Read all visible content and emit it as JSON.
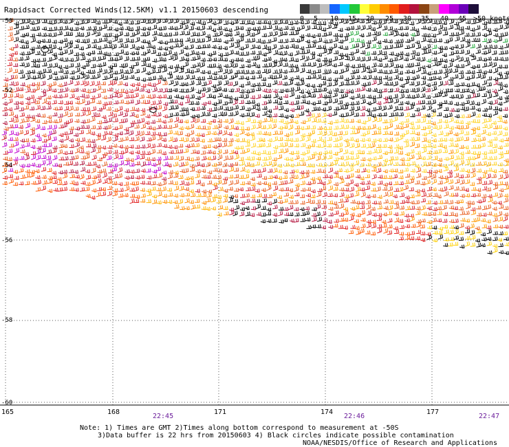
{
  "title": "Rapidsact Corrected Winds(12.5KM) v1.1 20150603 descending",
  "legend": {
    "labels": [
      "0",
      "5",
      "10",
      "15",
      "20",
      "25",
      "30",
      "35",
      "40",
      "45",
      ">50 knots"
    ],
    "colors": [
      "#3a3a3a",
      "#8a8a8a",
      "#bdbdbd",
      "#1565ff",
      "#00c8ff",
      "#22c83a",
      "#ffff3a",
      "#ffcc00",
      "#ff8c00",
      "#ff5a00",
      "#e11d1d",
      "#b3123c",
      "#8b4513",
      "#c8a07a",
      "#ff00ff",
      "#b000d8",
      "#6a00b8",
      "#1e0f3a"
    ]
  },
  "axes": {
    "x_labels": [
      "165",
      "168",
      "171",
      "174",
      "177"
    ],
    "y_labels": [
      "-50",
      "-52",
      "-54",
      "-56",
      "-58",
      "-60"
    ]
  },
  "times": [
    "22:45",
    "22:46",
    "22:47"
  ],
  "footer": {
    "note1": "Note: 1) Times are GMT 2)Times along bottom correspond to measurement at -50S",
    "note2": "3)Data buffer is 22 hrs from 20150603 4) Black circles indicate possible contamination",
    "credit": "NOAA/NESDIS/Office of Research and Applications"
  }
}
